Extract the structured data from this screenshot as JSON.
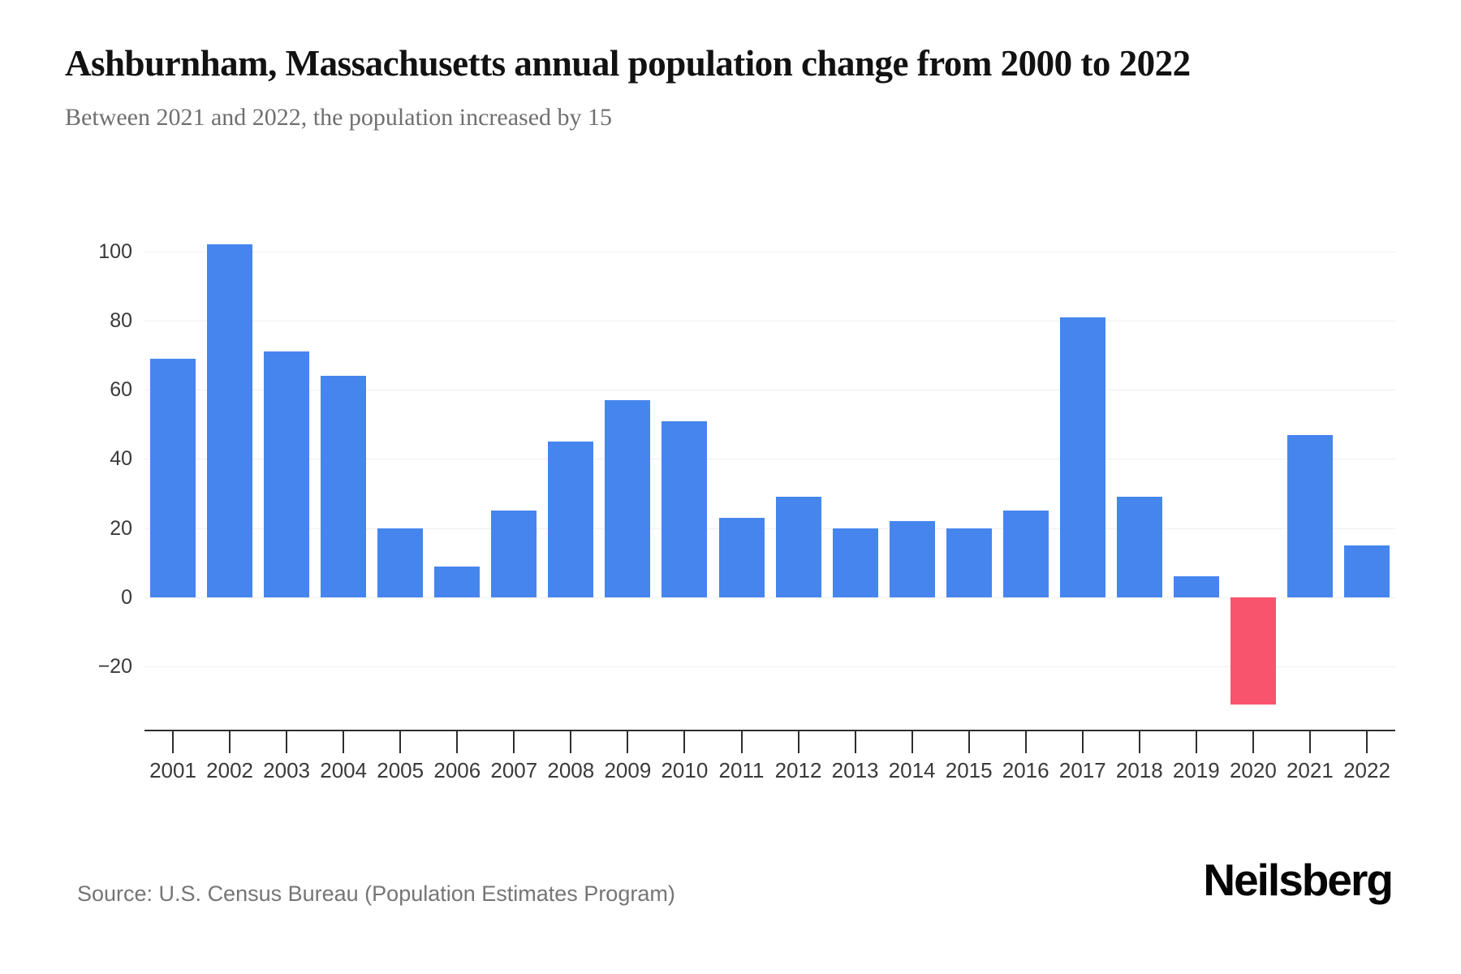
{
  "header": {
    "title": "Ashburnham, Massachusetts annual population change from 2000 to 2022",
    "subtitle": "Between 2021 and 2022, the population increased by 15"
  },
  "chart_data": {
    "type": "bar",
    "title": "Ashburnham, Massachusetts annual population change from 2000 to 2022",
    "xlabel": "",
    "ylabel": "",
    "categories": [
      "2001",
      "2002",
      "2003",
      "2004",
      "2005",
      "2006",
      "2007",
      "2008",
      "2009",
      "2010",
      "2011",
      "2012",
      "2013",
      "2014",
      "2015",
      "2016",
      "2017",
      "2018",
      "2019",
      "2020",
      "2021",
      "2022"
    ],
    "values": [
      69,
      102,
      71,
      64,
      20,
      9,
      25,
      45,
      57,
      51,
      23,
      29,
      20,
      22,
      20,
      25,
      81,
      29,
      6,
      -31,
      47,
      15
    ],
    "y_ticks": [
      100,
      80,
      60,
      40,
      20,
      0,
      -20
    ],
    "ylim": [
      -35,
      114
    ],
    "grid": true,
    "legend": "none",
    "colors": {
      "positive_bar": "#4685EE",
      "negative_bar": "#F8546E",
      "gridline": "#f0f0f2",
      "axis": "#2e2e2e",
      "tick_label": "#3a3a3a"
    }
  },
  "footer": {
    "source": "Source: U.S. Census Bureau (Population Estimates Program)",
    "brand": "Neilsberg"
  }
}
